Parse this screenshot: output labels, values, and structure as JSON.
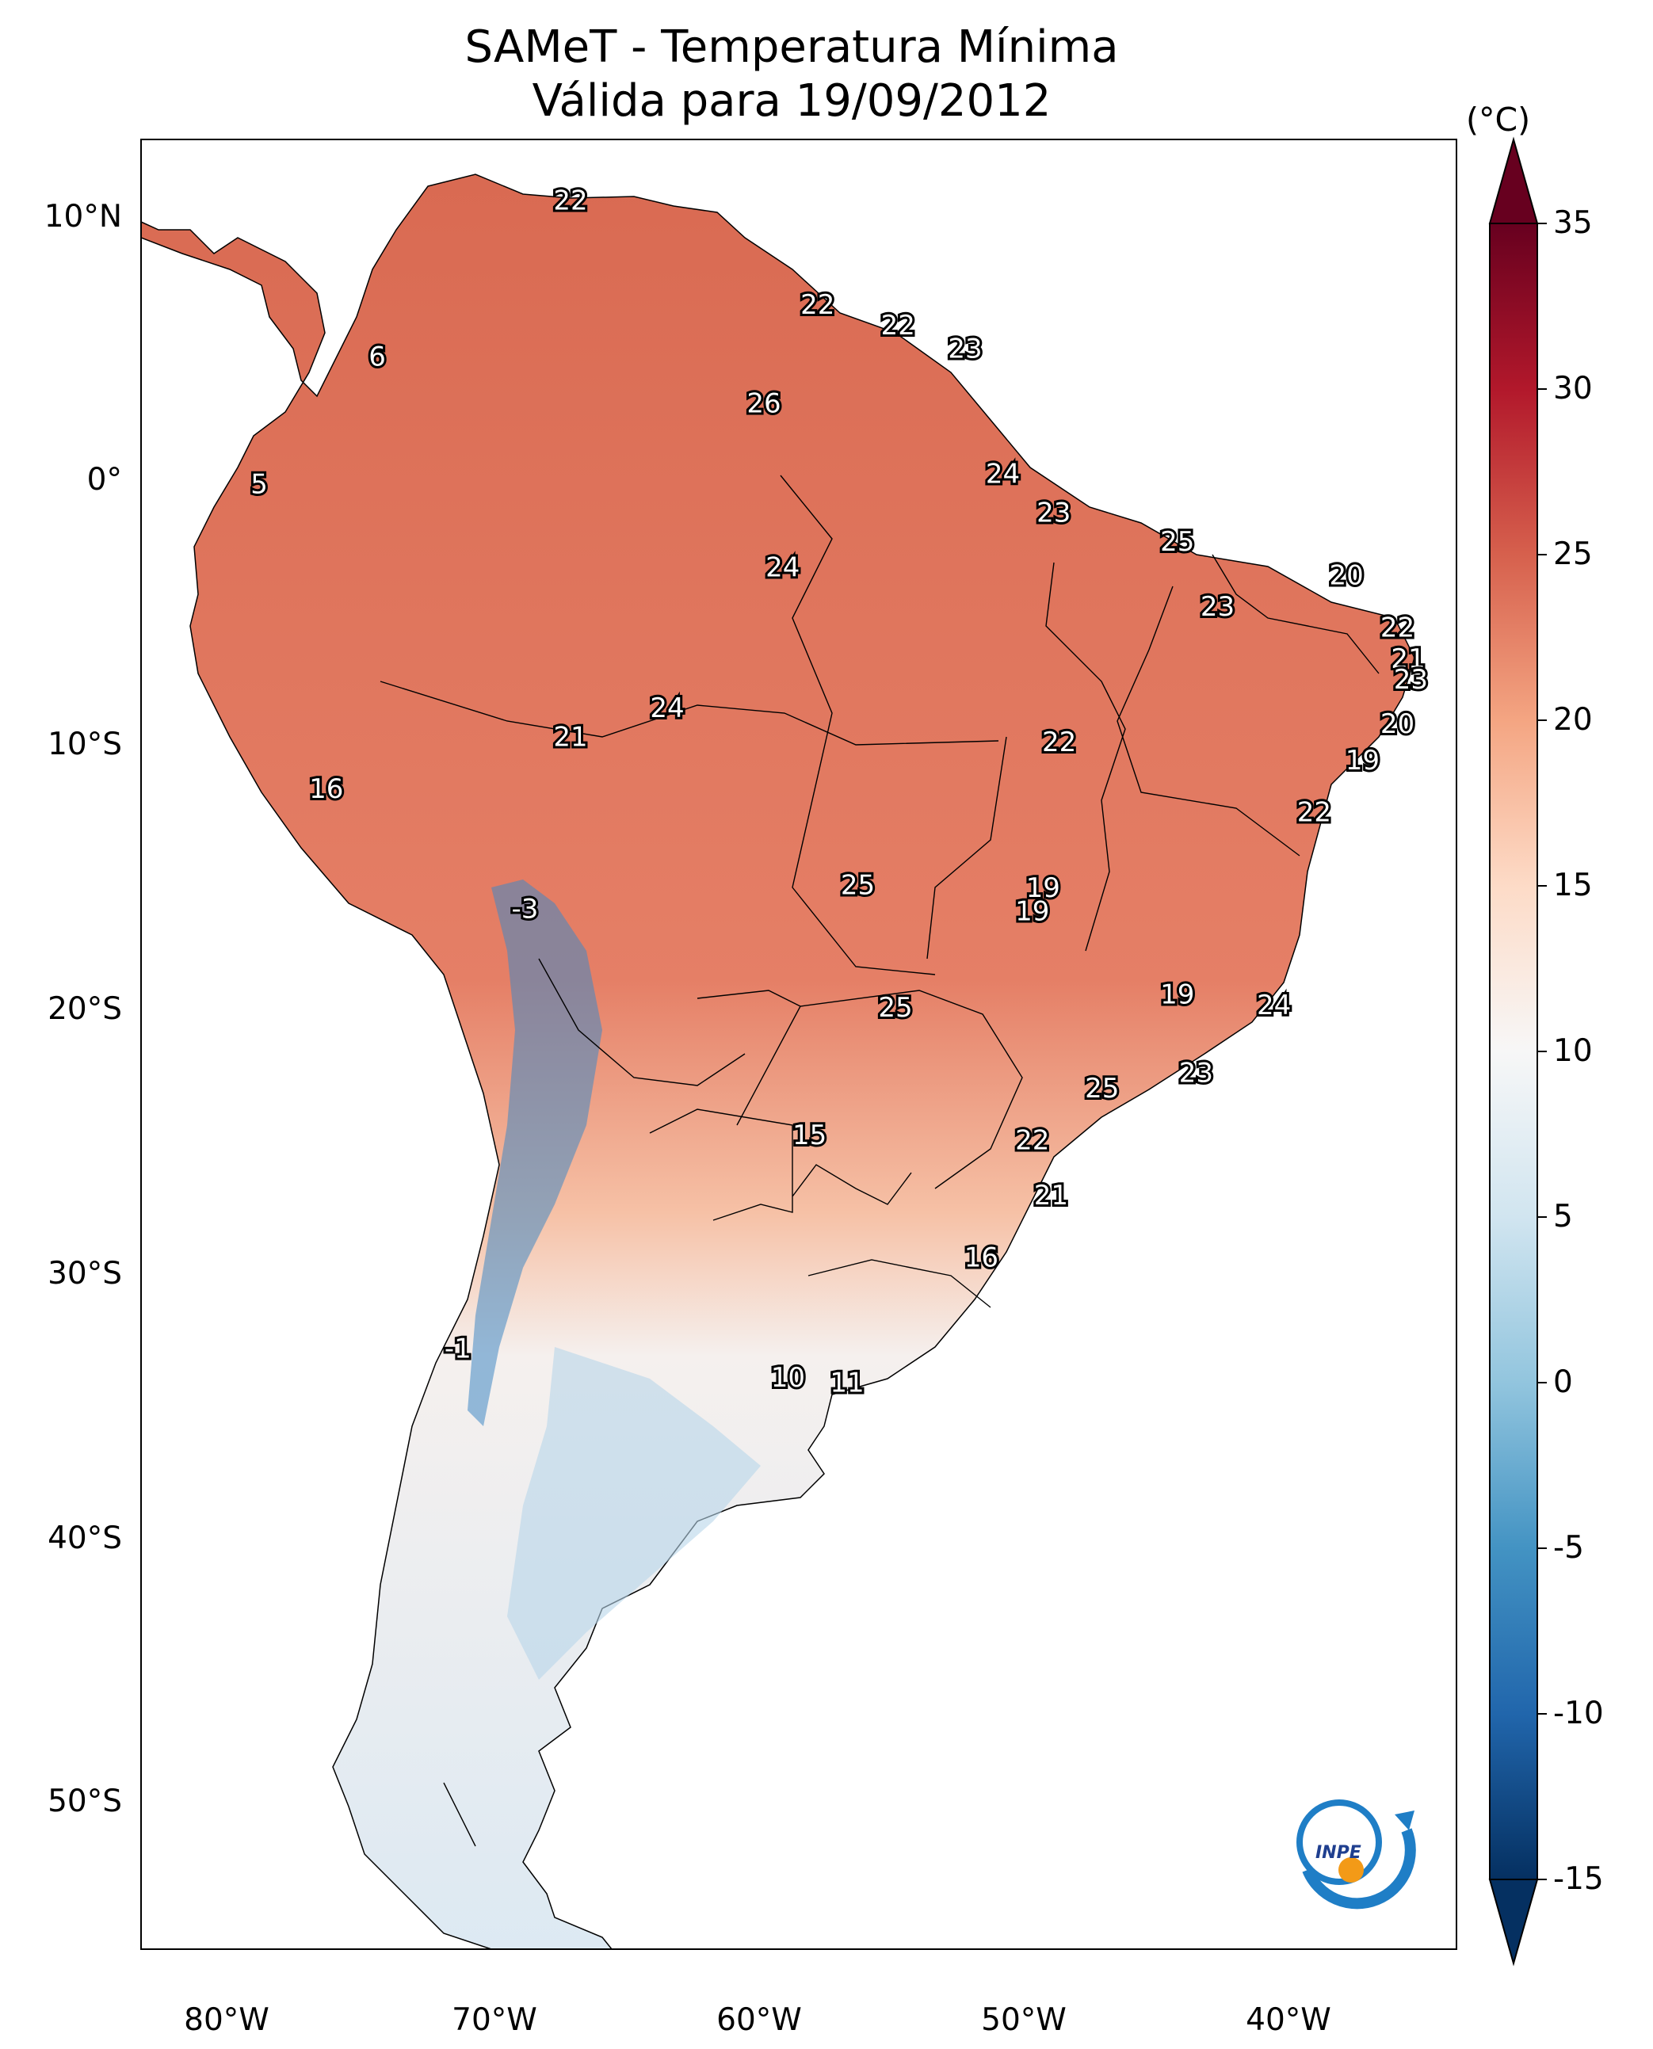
{
  "title": {
    "line1": "SAMeT - Temperatura Mínima",
    "line2": "Válida para 19/09/2012"
  },
  "map": {
    "latitude_labels": [
      "10°N",
      "0°",
      "10°S",
      "20°S",
      "30°S",
      "40°S",
      "50°S"
    ],
    "longitude_labels": [
      "80°W",
      "70°W",
      "60°W",
      "50°W",
      "40°W"
    ],
    "extent": {
      "lon_min": -82.5,
      "lon_max": -33.5,
      "lat_min": -56.5,
      "lat_max": 13.0
    },
    "station_values": [
      {
        "value": "22",
        "lon": -66.5,
        "lat": 10.6
      },
      {
        "value": "22",
        "lon": -57.3,
        "lat": 6.6
      },
      {
        "value": "22",
        "lon": -54.3,
        "lat": 5.8
      },
      {
        "value": "23",
        "lon": -51.8,
        "lat": 4.9
      },
      {
        "value": "6",
        "lon": -73.7,
        "lat": 4.6
      },
      {
        "value": "26",
        "lon": -59.3,
        "lat": 2.8
      },
      {
        "value": "24",
        "lon": -50.4,
        "lat": 0.1
      },
      {
        "value": "5",
        "lon": -78.1,
        "lat": -0.3
      },
      {
        "value": "23",
        "lon": -48.5,
        "lat": -1.4
      },
      {
        "value": "25",
        "lon": -43.9,
        "lat": -2.5
      },
      {
        "value": "24",
        "lon": -58.6,
        "lat": -3.5
      },
      {
        "value": "20",
        "lon": -37.6,
        "lat": -3.8
      },
      {
        "value": "23",
        "lon": -42.4,
        "lat": -5.0
      },
      {
        "value": "22",
        "lon": -35.7,
        "lat": -5.8
      },
      {
        "value": "21",
        "lon": -35.3,
        "lat": -7.0
      },
      {
        "value": "23",
        "lon": -35.2,
        "lat": -7.8
      },
      {
        "value": "24",
        "lon": -62.9,
        "lat": -8.9
      },
      {
        "value": "20",
        "lon": -35.7,
        "lat": -9.5
      },
      {
        "value": "21",
        "lon": -66.5,
        "lat": -10.0
      },
      {
        "value": "22",
        "lon": -48.3,
        "lat": -10.2
      },
      {
        "value": "19",
        "lon": -37.0,
        "lat": -10.9
      },
      {
        "value": "16",
        "lon": -75.6,
        "lat": -12.0
      },
      {
        "value": "22",
        "lon": -38.8,
        "lat": -12.9
      },
      {
        "value": "25",
        "lon": -55.8,
        "lat": -15.7
      },
      {
        "value": "19",
        "lon": -48.9,
        "lat": -15.8
      },
      {
        "value": "19",
        "lon": -49.3,
        "lat": -16.7
      },
      {
        "value": "-3",
        "lon": -68.2,
        "lat": -16.6
      },
      {
        "value": "19",
        "lon": -43.9,
        "lat": -19.9
      },
      {
        "value": "25",
        "lon": -54.4,
        "lat": -20.4
      },
      {
        "value": "24",
        "lon": -40.3,
        "lat": -20.3
      },
      {
        "value": "23",
        "lon": -43.2,
        "lat": -22.9
      },
      {
        "value": "25",
        "lon": -46.7,
        "lat": -23.5
      },
      {
        "value": "15",
        "lon": -57.6,
        "lat": -25.3
      },
      {
        "value": "22",
        "lon": -49.3,
        "lat": -25.5
      },
      {
        "value": "21",
        "lon": -48.6,
        "lat": -27.6
      },
      {
        "value": "16",
        "lon": -51.2,
        "lat": -30.0
      },
      {
        "value": "-1",
        "lon": -70.7,
        "lat": -33.5
      },
      {
        "value": "10",
        "lon": -58.4,
        "lat": -34.6
      },
      {
        "value": "11",
        "lon": -56.2,
        "lat": -34.8
      }
    ]
  },
  "colorbar": {
    "unit_label": "(°C)",
    "tick_labels": [
      "35",
      "30",
      "25",
      "20",
      "15",
      "10",
      "5",
      "0",
      "-5",
      "-10",
      "-15"
    ],
    "tick_values": [
      35,
      30,
      25,
      20,
      15,
      10,
      5,
      0,
      -5,
      -10,
      -15
    ],
    "range": [
      -15,
      35
    ],
    "extend": "both",
    "colormap": "RdBu_r",
    "colors": [
      "#053061",
      "#2166ac",
      "#4393c3",
      "#92c5de",
      "#d1e5f0",
      "#f7f7f7",
      "#fddbc7",
      "#f4a582",
      "#d6604d",
      "#b2182b",
      "#67001f"
    ]
  },
  "logo": {
    "text": "INPE"
  }
}
